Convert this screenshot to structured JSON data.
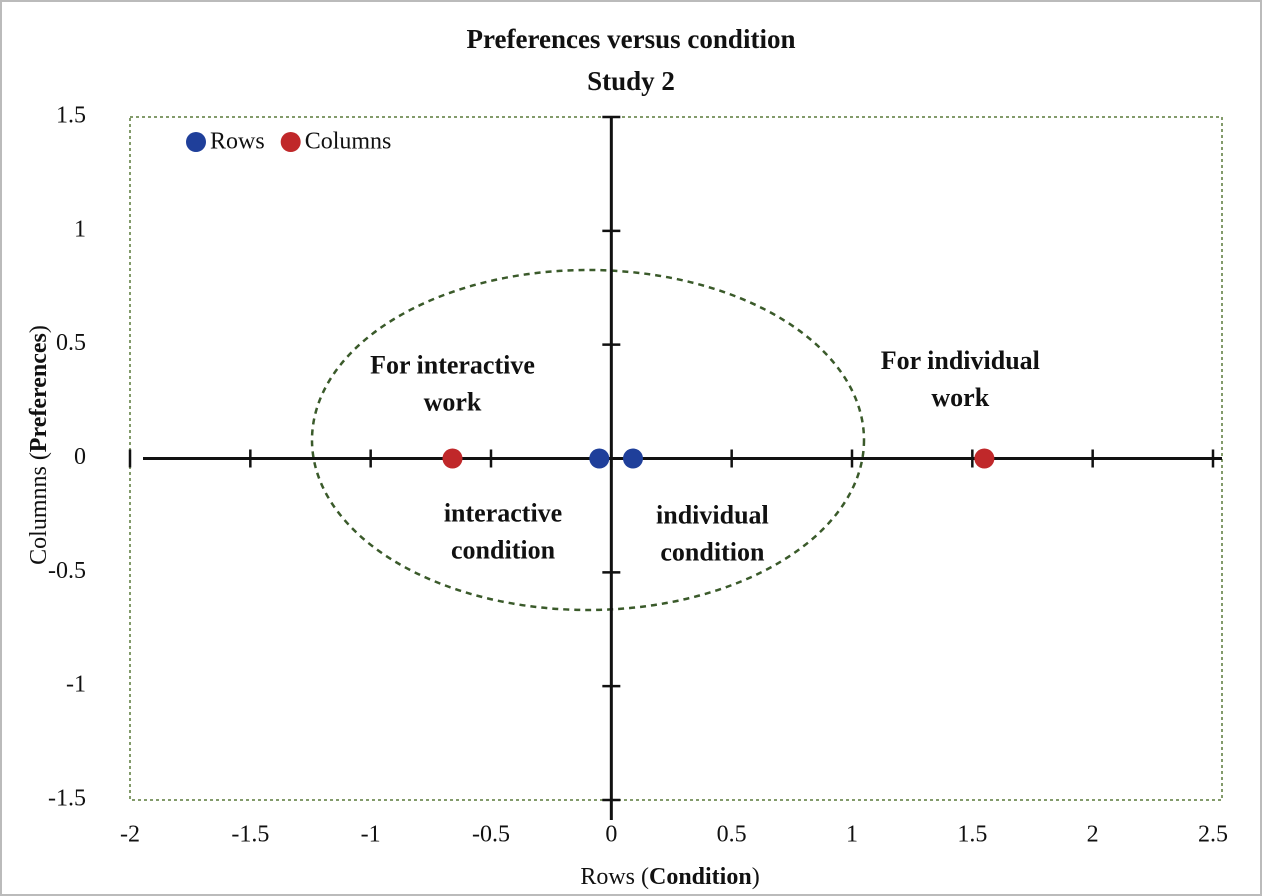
{
  "chart_data": {
    "type": "scatter",
    "title": [
      "Preferences versus condition",
      "Study 2"
    ],
    "xlabel": [
      "Rows (",
      "Condition",
      ")"
    ],
    "ylabel": [
      "Columnns (",
      "Preferences",
      ")"
    ],
    "xlim": [
      -2,
      2.5
    ],
    "ylim": [
      -1.5,
      1.5
    ],
    "xticks": [
      -2,
      -1.5,
      -1,
      -0.5,
      0,
      0.5,
      1,
      1.5,
      2,
      2.5
    ],
    "yticks": [
      -1.5,
      -1,
      -0.5,
      0,
      0.5,
      1,
      1.5
    ],
    "legend": "upper left",
    "series": [
      {
        "name": "Rows",
        "color": "#1f3f9a",
        "x": [
          -0.05,
          0.09
        ],
        "values": [
          0,
          0
        ]
      },
      {
        "name": "Columns",
        "color": "#c0282a",
        "x": [
          -0.66,
          1.55
        ],
        "values": [
          0,
          0
        ]
      }
    ],
    "annotations": [
      {
        "lines": [
          "For interactive",
          "work"
        ],
        "color": "#8b1a1a",
        "x": -0.66,
        "y": 0.4
      },
      {
        "lines": [
          "For individual",
          "work"
        ],
        "color": "#8b1a1a",
        "x": 1.45,
        "y": 0.42
      },
      {
        "lines": [
          "interactive",
          "condition"
        ],
        "color": "#2a4a8a",
        "x": -0.45,
        "y": -0.25
      },
      {
        "lines": [
          "individual",
          "condition"
        ],
        "color": "#2a4a8a",
        "x": 0.42,
        "y": -0.26
      }
    ]
  }
}
